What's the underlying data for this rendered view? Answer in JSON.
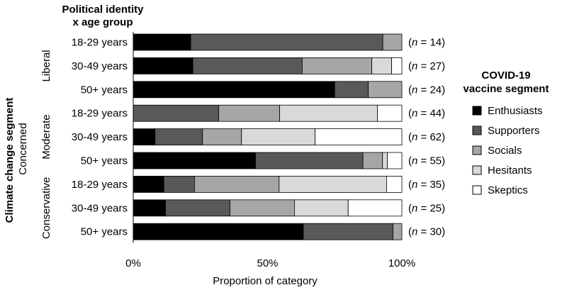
{
  "chart_data": {
    "type": "bar",
    "orientation": "horizontal",
    "stacked": true,
    "normalized": true,
    "row_header": [
      "Political identity",
      "x age group"
    ],
    "outer_label": "Climate change segment",
    "outer_sublabel": "Concerned",
    "xlabel": "Proportion of category",
    "x_ticks": [
      "0%",
      "50%",
      "100%"
    ],
    "xlim": [
      0,
      100
    ],
    "legend": {
      "title": [
        "COVID-19",
        "vaccine segment"
      ],
      "position": "right",
      "entries": [
        "Enthusiasts",
        "Supporters",
        "Socials",
        "Hesitants",
        "Skeptics"
      ]
    },
    "series_colors": [
      "#000000",
      "#595959",
      "#a6a6a6",
      "#d9d9d9",
      "#ffffff"
    ],
    "groups": [
      {
        "label": "Liberal",
        "rows": [
          0,
          1,
          2
        ]
      },
      {
        "label": "Moderate",
        "rows": [
          3,
          4,
          5
        ]
      },
      {
        "label": "Conservative",
        "rows": [
          6,
          7,
          8
        ]
      }
    ],
    "n_prefix": "(",
    "n_symbol": "n",
    "n_eq": " = ",
    "n_suffix": ")",
    "rows": [
      {
        "group": "Liberal",
        "label": "18-29 years",
        "n": "14",
        "values": [
          21.4,
          71.5,
          7.1,
          0,
          0
        ]
      },
      {
        "group": "Liberal",
        "label": "30-49 years",
        "n": "27",
        "values": [
          22.2,
          40.7,
          25.9,
          7.4,
          3.8
        ]
      },
      {
        "group": "Liberal",
        "label": "50+ years",
        "n": "24",
        "values": [
          75.0,
          12.5,
          12.5,
          0,
          0
        ]
      },
      {
        "group": "Moderate",
        "label": "18-29 years",
        "n": "44",
        "values": [
          0,
          31.8,
          22.7,
          36.4,
          9.1
        ]
      },
      {
        "group": "Moderate",
        "label": "30-49 years",
        "n": "62",
        "values": [
          8.1,
          17.7,
          14.5,
          27.4,
          32.3
        ]
      },
      {
        "group": "Moderate",
        "label": "50+ years",
        "n": "55",
        "values": [
          45.5,
          40.0,
          7.3,
          1.8,
          5.4
        ]
      },
      {
        "group": "Conservative",
        "label": "18-29 years",
        "n": "35",
        "values": [
          11.4,
          11.4,
          31.5,
          40.0,
          5.7
        ]
      },
      {
        "group": "Conservative",
        "label": "30-49 years",
        "n": "25",
        "values": [
          12.0,
          24.0,
          24.0,
          20.0,
          20.0
        ]
      },
      {
        "group": "Conservative",
        "label": "50+ years",
        "n": "30",
        "values": [
          63.3,
          33.4,
          3.3,
          0,
          0
        ]
      }
    ]
  }
}
